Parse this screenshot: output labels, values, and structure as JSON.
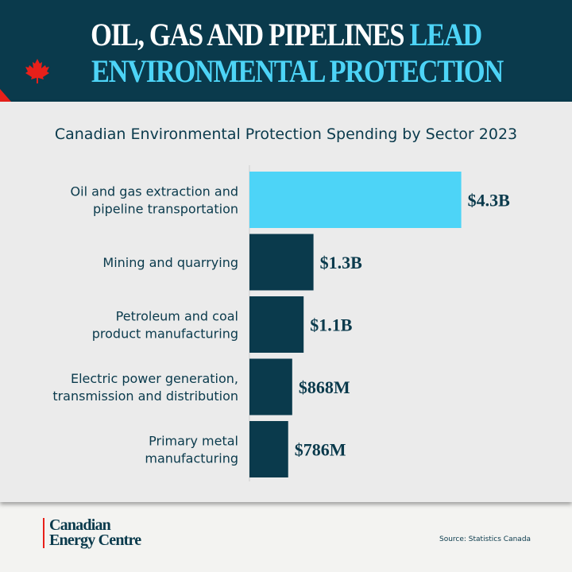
{
  "header": {
    "title_white": "OIL, GAS AND PIPELINES",
    "title_accent_1": "LEAD",
    "title_accent_2": "ENVIRONMENTAL PROTECTION",
    "icon": "maple-leaf-icon"
  },
  "colors": {
    "dark": "#0a3a4c",
    "accent": "#4dd4f7",
    "red": "#e8201a"
  },
  "chart_data": {
    "type": "bar",
    "orientation": "horizontal",
    "title": "Canadian Environmental Protection Spending by Sector 2023",
    "categories": [
      [
        "Oil and gas extraction and",
        "pipeline transportation"
      ],
      [
        "Mining and quarrying"
      ],
      [
        "Petroleum and coal",
        "product manufacturing"
      ],
      [
        "Electric power generation,",
        "transmission and distribution"
      ],
      [
        "Primary metal",
        "manufacturing"
      ]
    ],
    "values": [
      4.3,
      1.3,
      1.1,
      0.868,
      0.786
    ],
    "units": "billion CAD",
    "data_labels": [
      "$4.3B",
      "$1.3B",
      "$1.1B",
      "$868M",
      "$786M"
    ],
    "highlight_index": 0,
    "grid": false
  },
  "footer": {
    "logo_line1": "Canadian",
    "logo_line2": "Energy Centre",
    "source": "Source: Statistics Canada"
  }
}
